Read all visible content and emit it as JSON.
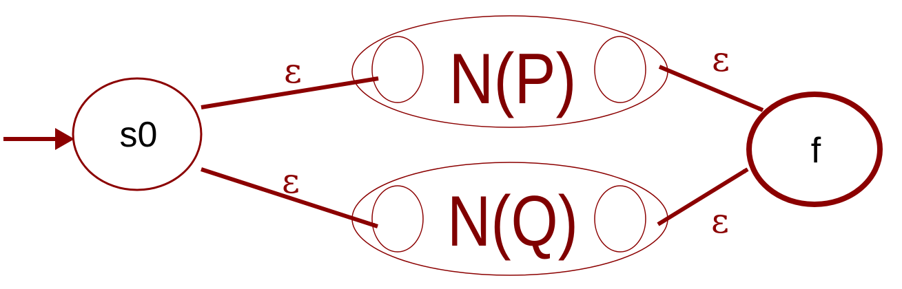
{
  "diagram": {
    "states": {
      "start": {
        "label": "s0"
      },
      "final": {
        "label": "f"
      }
    },
    "subautomata": {
      "top": {
        "label": "N(P)"
      },
      "bottom": {
        "label": "N(Q)"
      }
    },
    "transitions": {
      "s0_to_np": {
        "label": "ε"
      },
      "np_to_f": {
        "label": "ε"
      },
      "s0_to_nq": {
        "label": "ε"
      },
      "nq_to_f": {
        "label": "ε"
      }
    }
  },
  "colors": {
    "stroke": "#8b0000",
    "label": "#800000",
    "text": "#000000",
    "background": "#ffffff"
  }
}
